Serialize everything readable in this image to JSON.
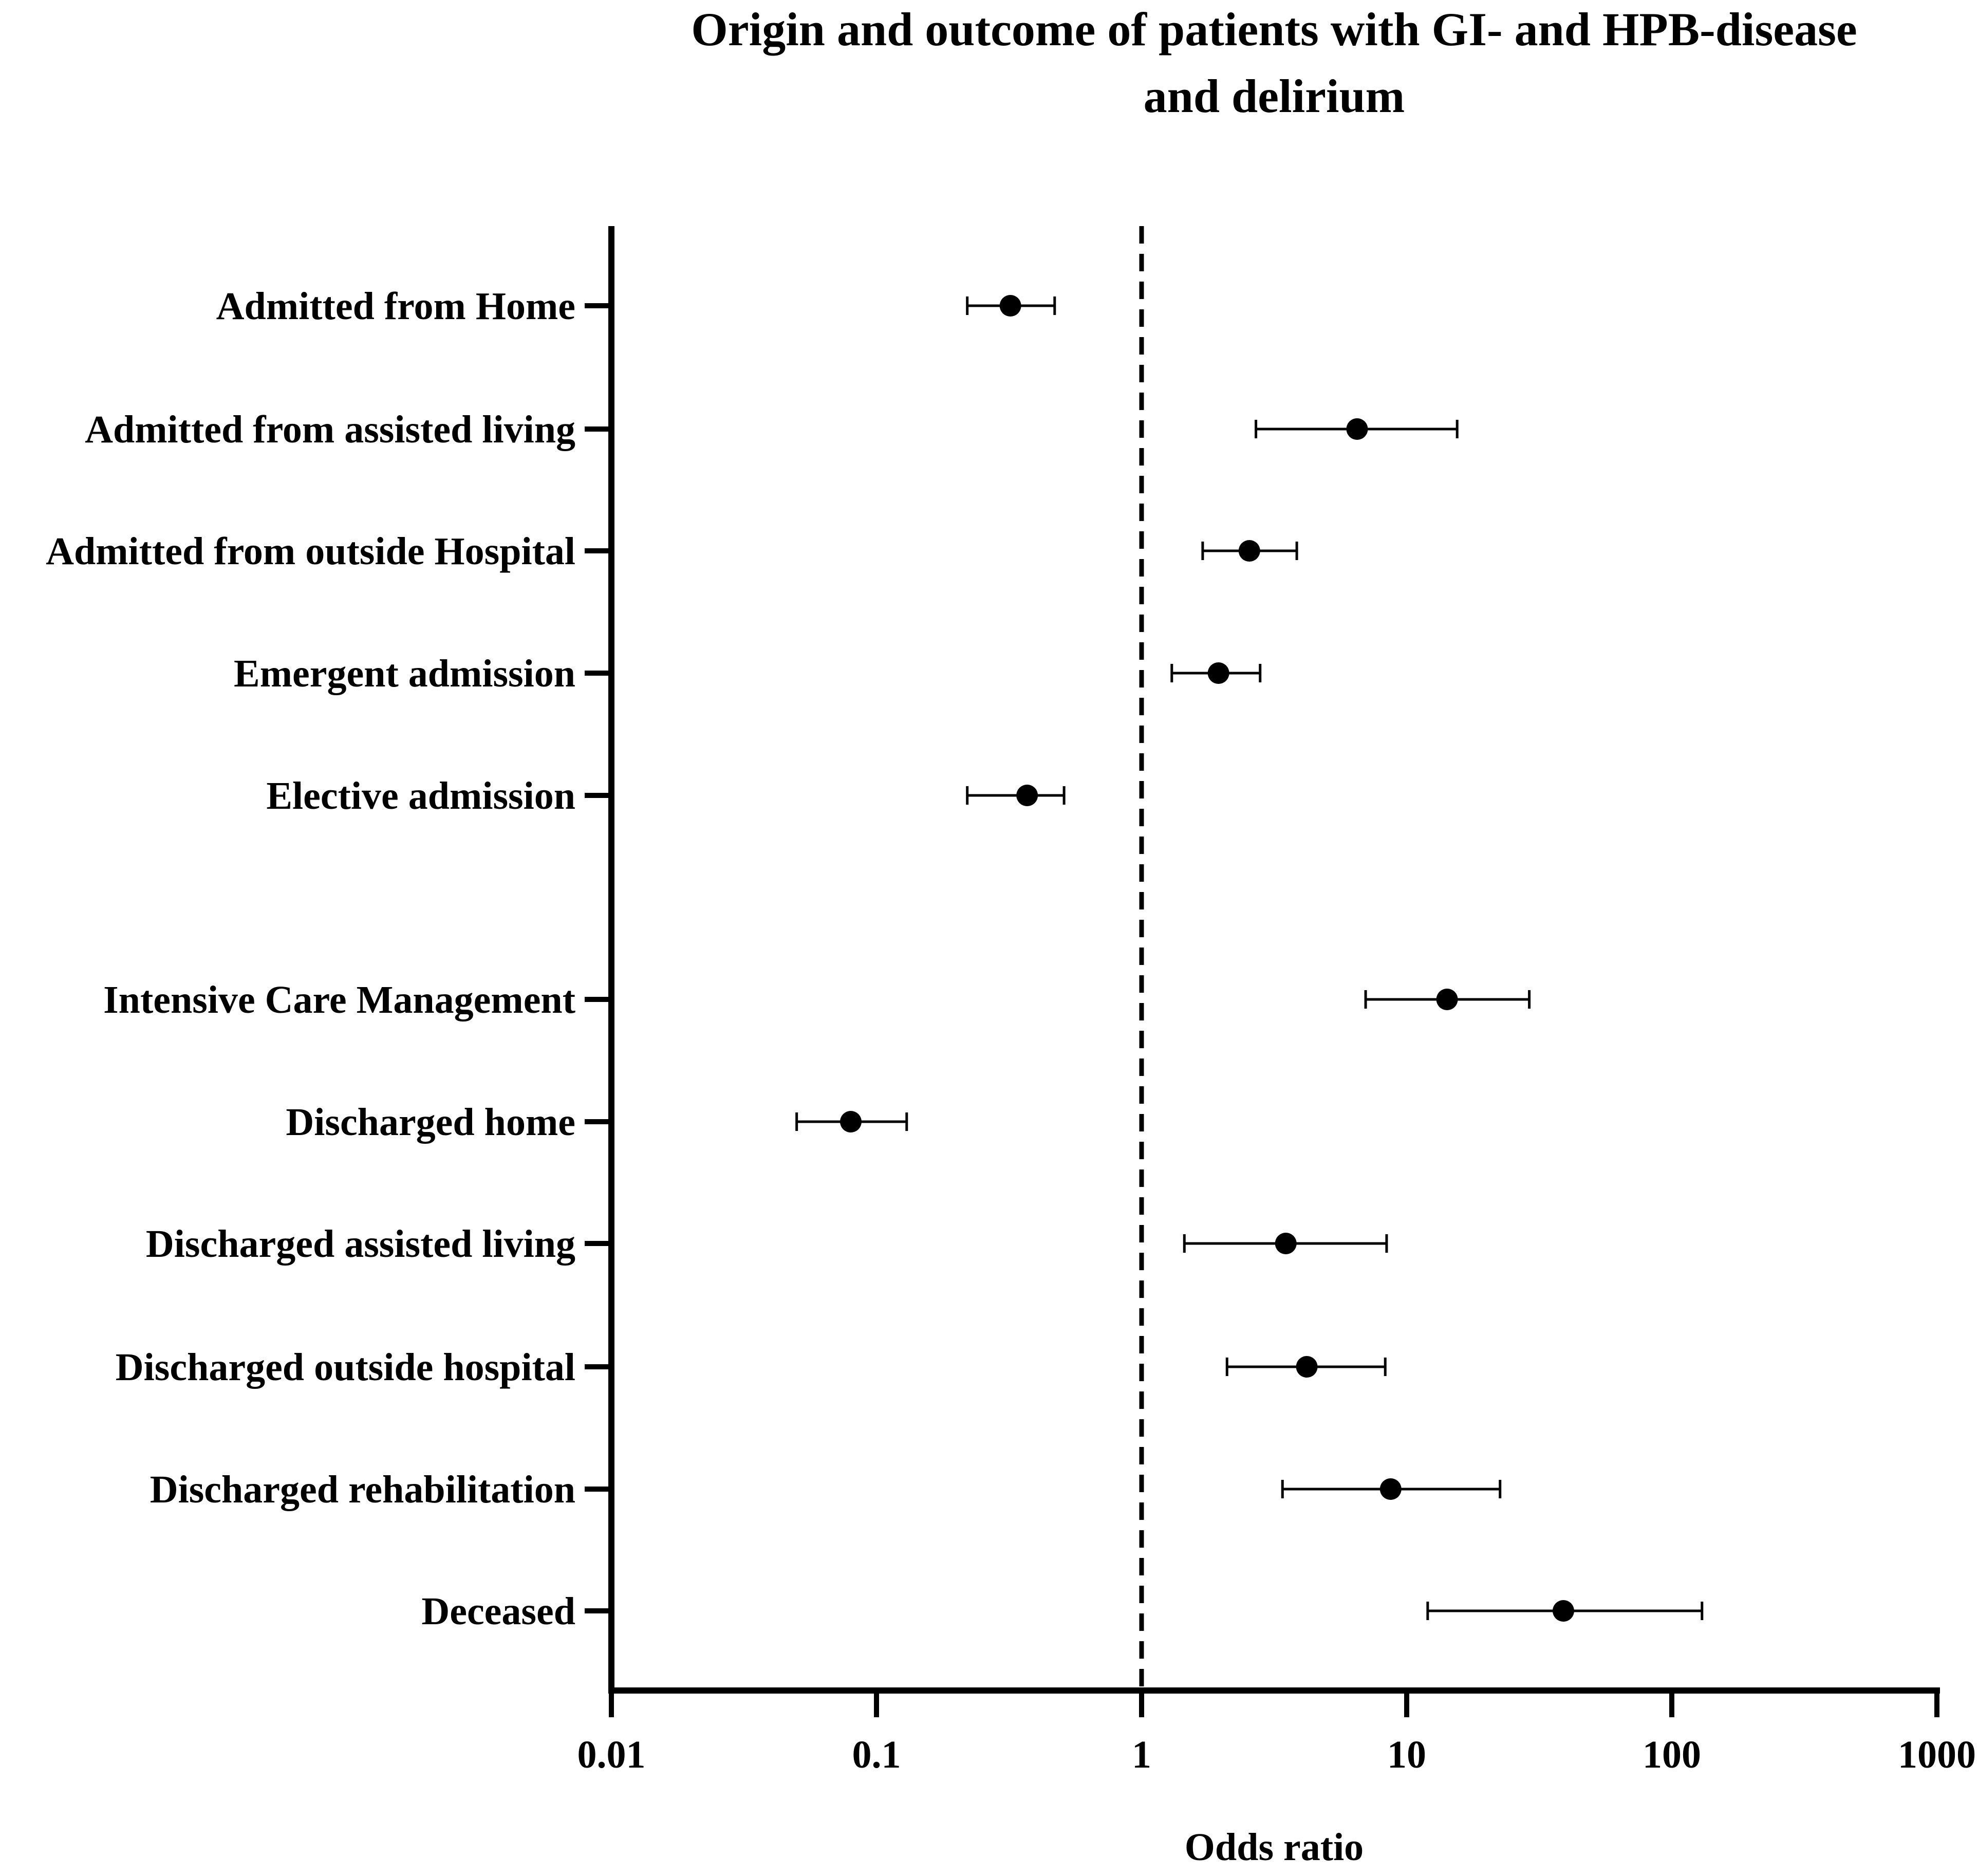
{
  "chart_data": {
    "type": "scatter",
    "title_lines": [
      "Origin and outcome of patients with GI- and HPB-disease",
      "and delirium"
    ],
    "xlabel": "Odds ratio",
    "ylabel": "",
    "x_scale": "log",
    "xlim": [
      0.01,
      1000
    ],
    "x_ticks": [
      "0.01",
      "0.1",
      "1",
      "10",
      "100",
      "1000"
    ],
    "reference_line": 1,
    "grid": false,
    "legend": "none",
    "marker_color": "#000000",
    "rows": [
      {
        "label": "Admitted from Home",
        "or": 0.32,
        "ci_low": 0.22,
        "ci_high": 0.47
      },
      {
        "label": "Admitted from assisted living",
        "or": 6.5,
        "ci_low": 2.7,
        "ci_high": 15.5
      },
      {
        "label": "Admitted from outside Hospital",
        "or": 2.55,
        "ci_low": 1.7,
        "ci_high": 3.85
      },
      {
        "label": "Emergent admission",
        "or": 1.95,
        "ci_low": 1.3,
        "ci_high": 2.8
      },
      {
        "label": "Elective admission",
        "or": 0.37,
        "ci_low": 0.22,
        "ci_high": 0.51
      },
      {
        "label": "Intensive Care Management",
        "or": 14.2,
        "ci_low": 7.0,
        "ci_high": 29.0
      },
      {
        "label": "Discharged home",
        "or": 0.08,
        "ci_low": 0.05,
        "ci_high": 0.13
      },
      {
        "label": "Discharged assisted living",
        "or": 3.5,
        "ci_low": 1.45,
        "ci_high": 8.4
      },
      {
        "label": "Discharged outside hospital",
        "or": 4.2,
        "ci_low": 2.1,
        "ci_high": 8.3
      },
      {
        "label": "Discharged rehabilitation",
        "or": 8.7,
        "ci_low": 3.4,
        "ci_high": 22.5
      },
      {
        "label": "Deceased",
        "or": 39.0,
        "ci_low": 12.0,
        "ci_high": 130.0
      }
    ]
  }
}
